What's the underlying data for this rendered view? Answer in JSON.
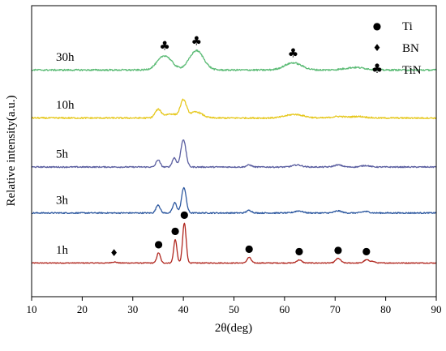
{
  "chart_data": {
    "type": "line",
    "xlabel": "2θ(deg)",
    "ylabel": "Relative intensity(a.u.)",
    "xlim": [
      10,
      90
    ],
    "x_ticks": [
      10,
      20,
      30,
      40,
      50,
      60,
      70,
      80,
      90
    ],
    "y_ticks_shown": false,
    "grid": false,
    "stacked_offset": true,
    "legend": {
      "position": "top-right",
      "entries": [
        {
          "symbol": "●",
          "label": "Ti"
        },
        {
          "symbol": "♦",
          "label": "BN"
        },
        {
          "symbol": "♣",
          "label": "TiN"
        }
      ]
    },
    "series": [
      {
        "name": "1h",
        "color": "#b0261e",
        "offset": 0.0,
        "baseline": 0.03,
        "noise": 0.004,
        "peaks": [
          {
            "x": 26.3,
            "h": 0.01,
            "w": 0.5
          },
          {
            "x": 35.1,
            "h": 0.1,
            "w": 0.35
          },
          {
            "x": 38.4,
            "h": 0.23,
            "w": 0.32
          },
          {
            "x": 40.2,
            "h": 0.39,
            "w": 0.35
          },
          {
            "x": 53.0,
            "h": 0.055,
            "w": 0.4
          },
          {
            "x": 62.9,
            "h": 0.03,
            "w": 0.5
          },
          {
            "x": 70.6,
            "h": 0.045,
            "w": 0.5
          },
          {
            "x": 76.2,
            "h": 0.03,
            "w": 0.5
          },
          {
            "x": 77.4,
            "h": 0.015,
            "w": 0.5
          }
        ]
      },
      {
        "name": "3h",
        "color": "#2e59a0",
        "offset": 0.48,
        "baseline": 0.04,
        "noise": 0.006,
        "peaks": [
          {
            "x": 35.0,
            "h": 0.08,
            "w": 0.4
          },
          {
            "x": 38.3,
            "h": 0.1,
            "w": 0.4
          },
          {
            "x": 40.1,
            "h": 0.25,
            "w": 0.45
          },
          {
            "x": 53.0,
            "h": 0.025,
            "w": 0.5
          },
          {
            "x": 62.8,
            "h": 0.02,
            "w": 0.8
          },
          {
            "x": 70.6,
            "h": 0.02,
            "w": 0.7
          },
          {
            "x": 76.0,
            "h": 0.015,
            "w": 0.7
          }
        ]
      },
      {
        "name": "5h",
        "color": "#5a5ea0",
        "offset": 0.93,
        "baseline": 0.04,
        "noise": 0.006,
        "peaks": [
          {
            "x": 35.0,
            "h": 0.07,
            "w": 0.4
          },
          {
            "x": 38.2,
            "h": 0.09,
            "w": 0.4
          },
          {
            "x": 40.0,
            "h": 0.27,
            "w": 0.5
          },
          {
            "x": 53.0,
            "h": 0.02,
            "w": 0.5
          },
          {
            "x": 62.5,
            "h": 0.02,
            "w": 0.9
          },
          {
            "x": 70.6,
            "h": 0.02,
            "w": 0.8
          },
          {
            "x": 76.0,
            "h": 0.015,
            "w": 0.8
          }
        ]
      },
      {
        "name": "10h",
        "color": "#e6c81e",
        "offset": 1.4,
        "baseline": 0.05,
        "noise": 0.007,
        "peaks": [
          {
            "x": 35.0,
            "h": 0.08,
            "w": 0.6
          },
          {
            "x": 37.5,
            "h": 0.04,
            "w": 1.2
          },
          {
            "x": 40.0,
            "h": 0.17,
            "w": 0.6
          },
          {
            "x": 42.5,
            "h": 0.06,
            "w": 1.2
          },
          {
            "x": 62.0,
            "h": 0.035,
            "w": 1.8
          },
          {
            "x": 70.6,
            "h": 0.015,
            "w": 1.2
          },
          {
            "x": 74.5,
            "h": 0.015,
            "w": 1.5
          }
        ]
      },
      {
        "name": "30h",
        "color": "#5bbb75",
        "offset": 1.85,
        "baseline": 0.07,
        "noise": 0.008,
        "peaks": [
          {
            "x": 36.3,
            "h": 0.14,
            "w": 1.4
          },
          {
            "x": 42.6,
            "h": 0.19,
            "w": 1.4
          },
          {
            "x": 61.7,
            "h": 0.07,
            "w": 1.7
          },
          {
            "x": 74.0,
            "h": 0.025,
            "w": 2.0
          }
        ]
      }
    ],
    "annotations": [
      {
        "symbol": "♦",
        "x": 26.3,
        "series": "1h"
      },
      {
        "symbol": "●",
        "x": 35.1,
        "series": "1h"
      },
      {
        "symbol": "●",
        "x": 38.4,
        "series": "1h"
      },
      {
        "symbol": "●",
        "x": 40.2,
        "series": "1h"
      },
      {
        "symbol": "●",
        "x": 53.0,
        "series": "1h"
      },
      {
        "symbol": "●",
        "x": 62.9,
        "series": "1h"
      },
      {
        "symbol": "●",
        "x": 70.6,
        "series": "1h"
      },
      {
        "symbol": "●",
        "x": 76.2,
        "series": "1h"
      },
      {
        "symbol": "♣",
        "x": 36.3,
        "series": "30h"
      },
      {
        "symbol": "♣",
        "x": 42.6,
        "series": "30h"
      },
      {
        "symbol": "♣",
        "x": 61.7,
        "series": "30h"
      }
    ]
  }
}
